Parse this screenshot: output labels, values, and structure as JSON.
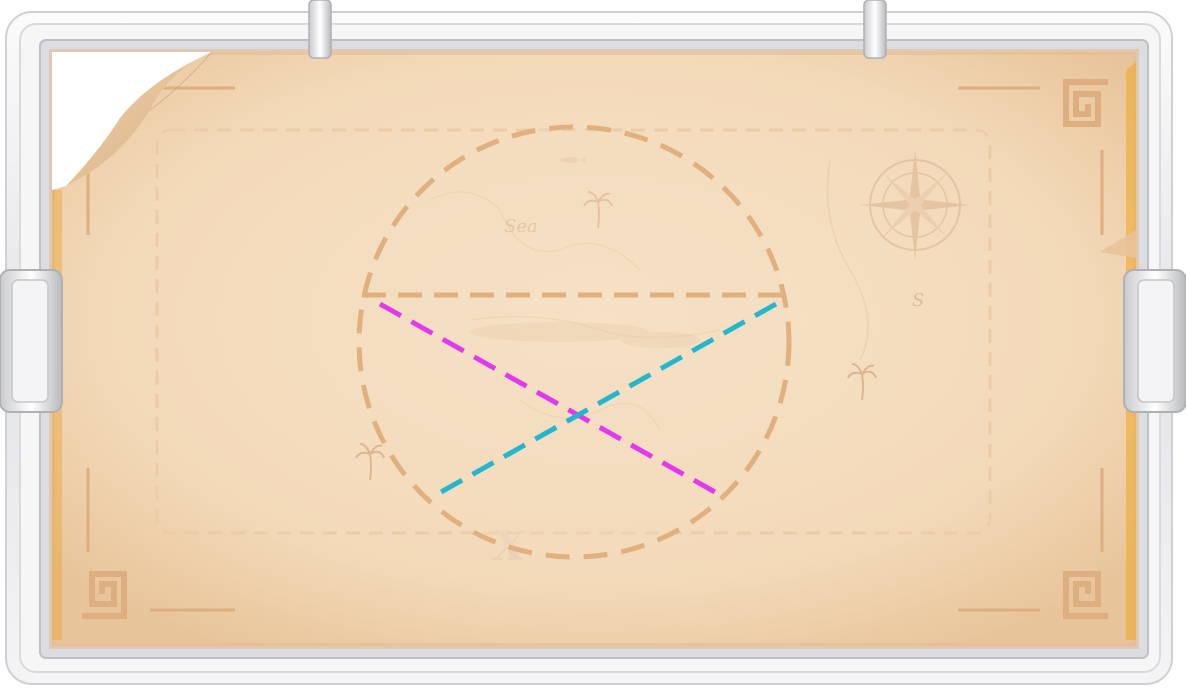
{
  "board": {
    "theme": "old-treasure-map",
    "map_labels": {
      "sea": "Sea",
      "compass_south": "S",
      "treasure_mark": "X"
    }
  },
  "puzzle": {
    "circle": {
      "style": "dashed",
      "color": "#e0b07f"
    },
    "guides": [
      {
        "id": "chord-horizontal",
        "color": "#e0b07f"
      },
      {
        "id": "diagonal-magenta",
        "color": "#e238f0"
      },
      {
        "id": "diagonal-cyan",
        "color": "#25b6cf"
      }
    ],
    "dashed_border_color": "#e9c9a2"
  },
  "colors": {
    "parchment": "#f5ddbf",
    "parchment_edge": "#e9c59b",
    "frame_glass": "#e9eaec",
    "ornament": "#d9ab7e"
  },
  "icons": [
    "compass-rose-icon",
    "palm-tree-icon",
    "fish-icon",
    "corner-ornament-icon"
  ]
}
